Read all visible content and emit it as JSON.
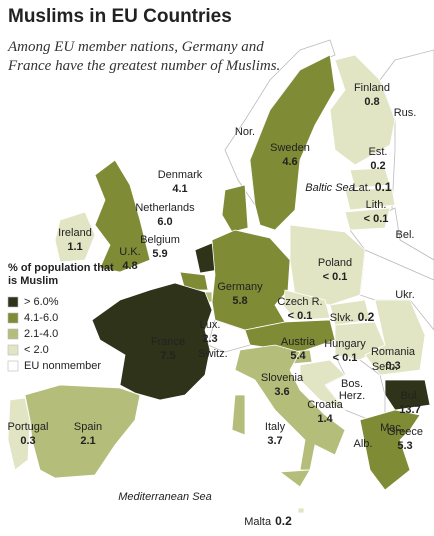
{
  "header": {
    "title": "Muslims in EU Countries",
    "subtitle": "Among EU member nations, Germany and France have the greatest number of Muslims."
  },
  "legend": {
    "title": "% of population that is Muslim",
    "items": [
      {
        "label": "> 6.0%",
        "color": "#2e3319"
      },
      {
        "label": "4.1-6.0",
        "color": "#7f8b35"
      },
      {
        "label": "2.1-4.0",
        "color": "#b5bd7a"
      },
      {
        "label": "< 2.0",
        "color": "#e1e5c3"
      },
      {
        "label": "EU nonmember",
        "color": "#ffffff"
      }
    ]
  },
  "countries": [
    {
      "name": "Finland",
      "value": "0.8",
      "color": "#e1e5c3"
    },
    {
      "name": "Sweden",
      "value": "4.6",
      "color": "#7f8b35"
    },
    {
      "name": "Est.",
      "value": "0.2",
      "color": "#e1e5c3"
    },
    {
      "name": "Lat.",
      "value": "0.1",
      "color": "#e1e5c3"
    },
    {
      "name": "Lith.",
      "value": "< 0.1",
      "color": "#e1e5c3"
    },
    {
      "name": "Denmark",
      "value": "4.1",
      "color": "#7f8b35"
    },
    {
      "name": "Netherlands",
      "value": "6.0",
      "color": "#2e3319"
    },
    {
      "name": "Ireland",
      "value": "1.1",
      "color": "#e1e5c3"
    },
    {
      "name": "U.K.",
      "value": "4.8",
      "color": "#7f8b35"
    },
    {
      "name": "Belgium",
      "value": "5.9",
      "color": "#7f8b35"
    },
    {
      "name": "Poland",
      "value": "< 0.1",
      "color": "#e1e5c3"
    },
    {
      "name": "Germany",
      "value": "5.8",
      "color": "#7f8b35"
    },
    {
      "name": "Czech R.",
      "value": "< 0.1",
      "color": "#e1e5c3"
    },
    {
      "name": "Slvk.",
      "value": "0.2",
      "color": "#e1e5c3"
    },
    {
      "name": "Lux.",
      "value": "2.3",
      "color": "#b5bd7a"
    },
    {
      "name": "France",
      "value": "7.5",
      "color": "#2e3319"
    },
    {
      "name": "Austria",
      "value": "5.4",
      "color": "#7f8b35"
    },
    {
      "name": "Hungary",
      "value": "< 0.1",
      "color": "#e1e5c3"
    },
    {
      "name": "Romania",
      "value": "0.3",
      "color": "#e1e5c3"
    },
    {
      "name": "Slovenia",
      "value": "3.6",
      "color": "#b5bd7a"
    },
    {
      "name": "Croatia",
      "value": "1.4",
      "color": "#e1e5c3"
    },
    {
      "name": "Bul.",
      "value": "13.7",
      "color": "#2e3319"
    },
    {
      "name": "Portugal",
      "value": "0.3",
      "color": "#e1e5c3"
    },
    {
      "name": "Spain",
      "value": "2.1",
      "color": "#b5bd7a"
    },
    {
      "name": "Italy",
      "value": "3.7",
      "color": "#b5bd7a"
    },
    {
      "name": "Greece",
      "value": "5.3",
      "color": "#7f8b35"
    },
    {
      "name": "Malta",
      "value": "0.2",
      "color": "#e1e5c3"
    }
  ],
  "other_labels": [
    "Nor.",
    "Rus.",
    "Bel.",
    "Ukr.",
    "Switz.",
    "Serb.",
    "Bos.",
    "Herz.",
    "Mac.",
    "Alb."
  ],
  "seas": [
    "Baltic Sea",
    "Mediterranean Sea"
  ]
}
